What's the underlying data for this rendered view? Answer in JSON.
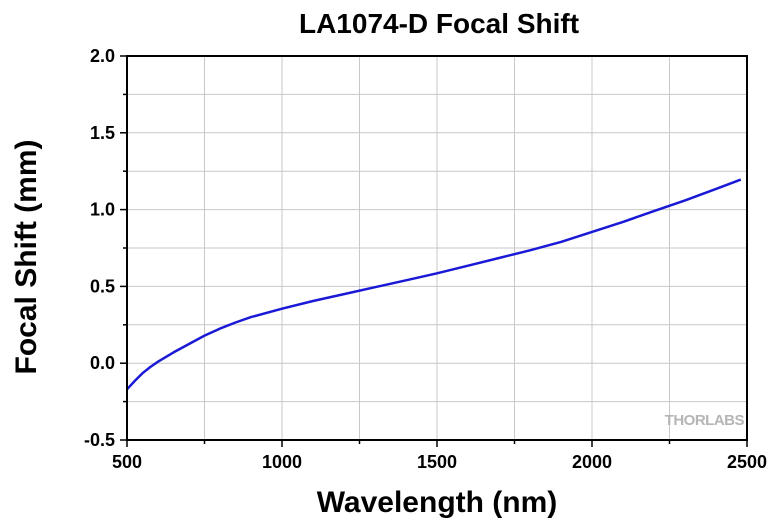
{
  "chart_data": {
    "type": "line",
    "title": "LA1074-D Focal Shift",
    "xlabel": "Wavelength (nm)",
    "ylabel": "Focal Shift (mm)",
    "xlim": [
      500,
      2500
    ],
    "ylim": [
      -0.5,
      2.0
    ],
    "xticks": [
      500,
      1000,
      1500,
      2000,
      2500
    ],
    "yticks": [
      -0.5,
      0.0,
      0.5,
      1.0,
      1.5,
      2.0
    ],
    "xtick_labels": [
      "500",
      "1000",
      "1500",
      "2000",
      "2500"
    ],
    "ytick_labels": [
      "-0.5",
      "0.0",
      "0.5",
      "1.0",
      "1.5",
      "2.0"
    ],
    "grid": true,
    "line_color": "#1a1ad6",
    "series": [
      {
        "x": [
          500,
          525,
          550,
          575,
          600,
          650,
          700,
          750,
          800,
          850,
          900,
          1000,
          1100,
          1200,
          1300,
          1400,
          1500,
          1600,
          1700,
          1800,
          1900,
          2000,
          2100,
          2200,
          2300,
          2400,
          2480
        ],
        "y": [
          -0.17,
          -0.115,
          -0.065,
          -0.025,
          0.01,
          0.07,
          0.125,
          0.18,
          0.225,
          0.265,
          0.3,
          0.355,
          0.405,
          0.45,
          0.495,
          0.54,
          0.585,
          0.635,
          0.685,
          0.735,
          0.79,
          0.855,
          0.92,
          0.99,
          1.06,
          1.135,
          1.195
        ]
      }
    ],
    "watermark": "THORLABS"
  }
}
